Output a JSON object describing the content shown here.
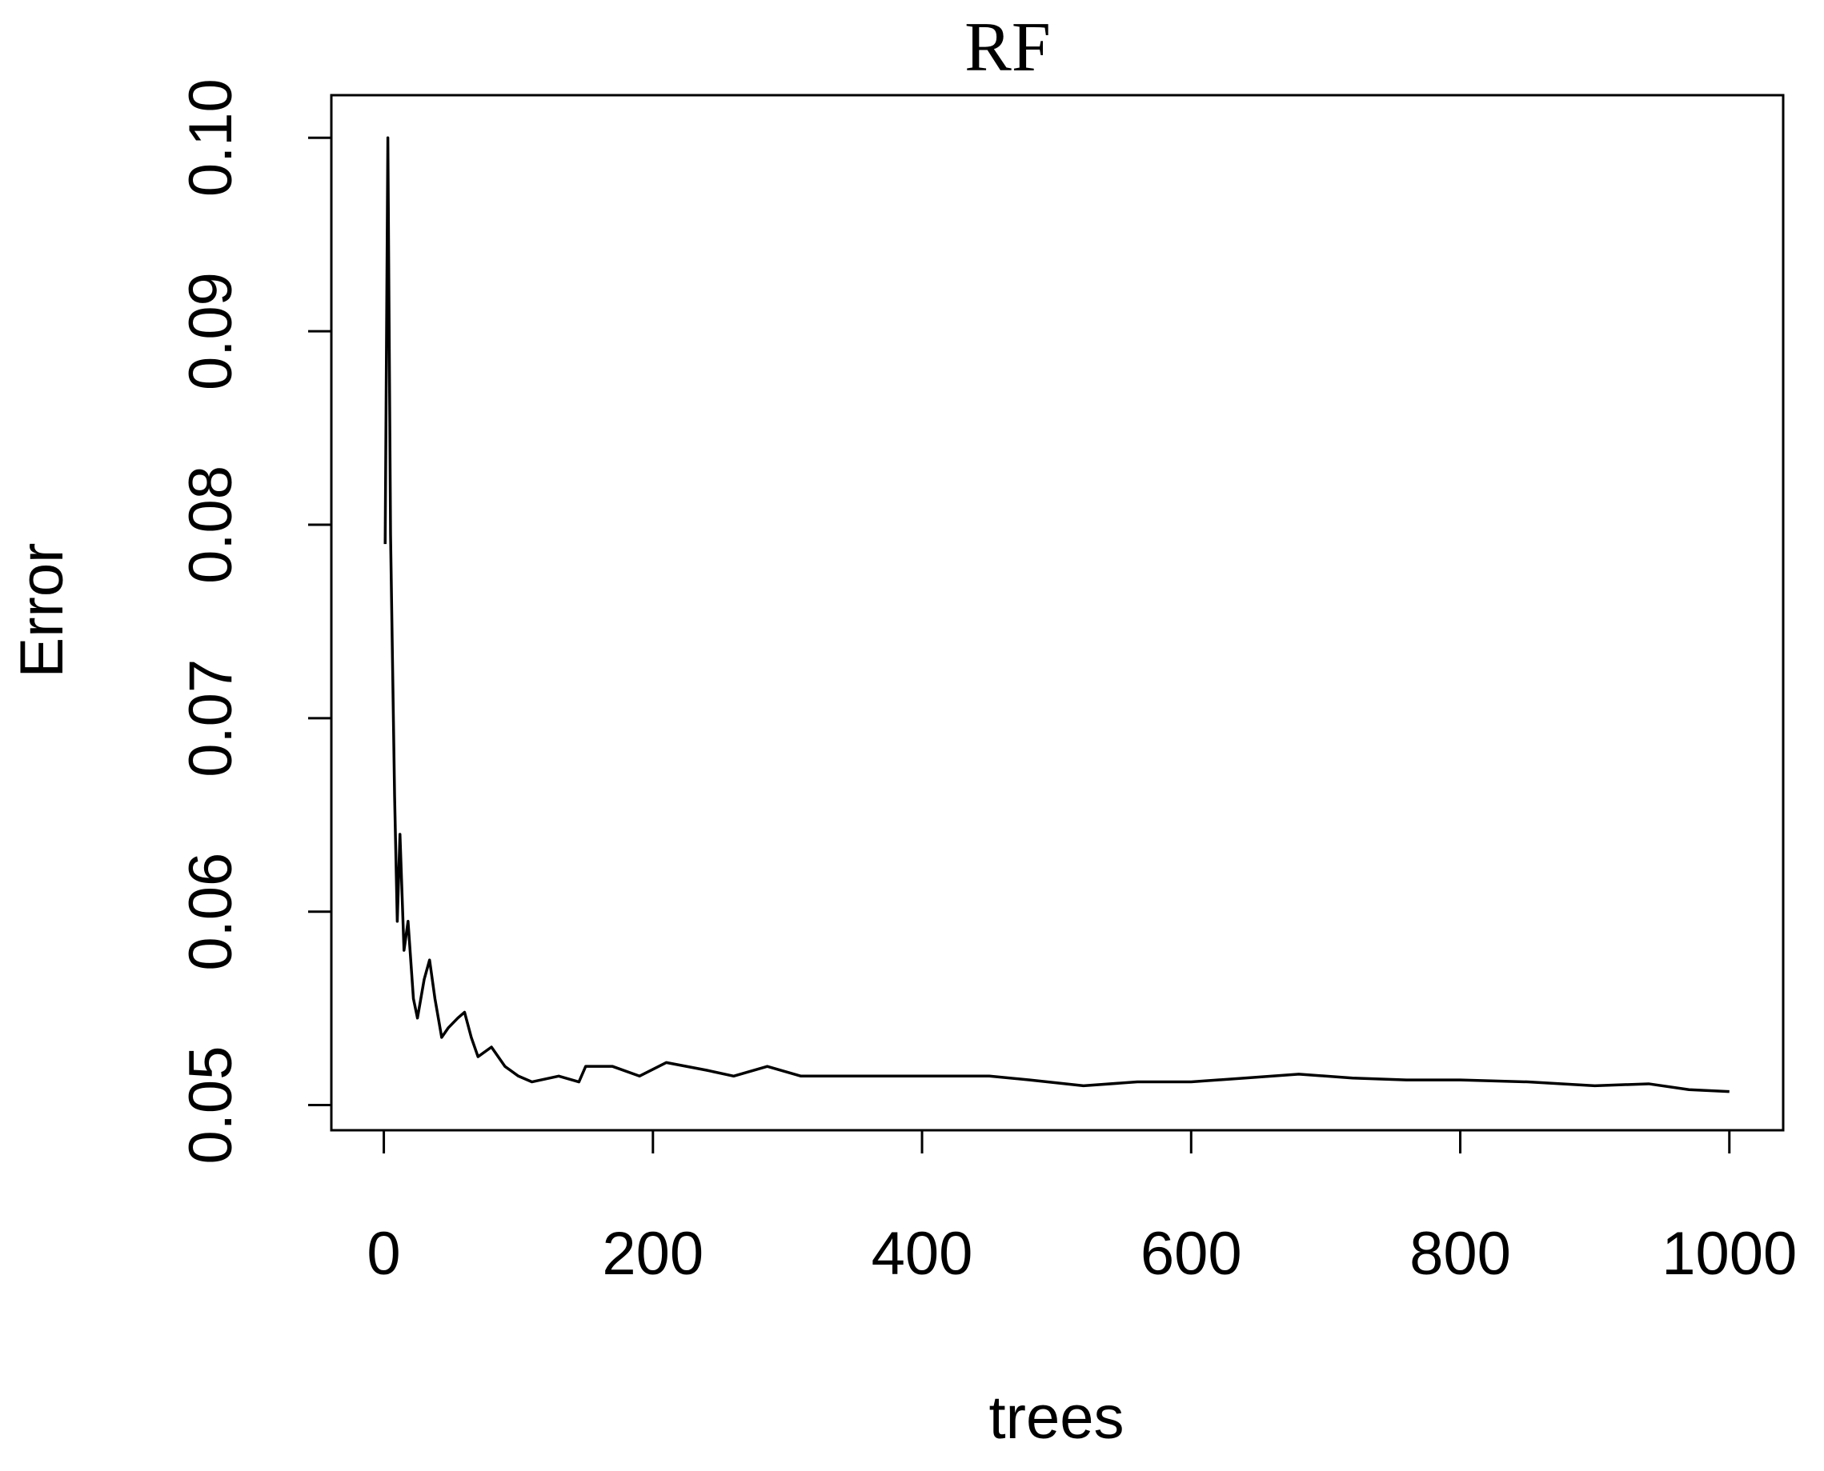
{
  "chart_data": {
    "type": "line",
    "title": "RF",
    "x_label": "trees",
    "y_label": "Error",
    "x": [
      1,
      3,
      5,
      8,
      10,
      12,
      15,
      18,
      22,
      25,
      30,
      34,
      38,
      43,
      48,
      55,
      60,
      65,
      70,
      80,
      90,
      100,
      110,
      130,
      145,
      150,
      170,
      190,
      210,
      240,
      260,
      285,
      310,
      350,
      400,
      450,
      480,
      520,
      560,
      600,
      640,
      680,
      720,
      760,
      800,
      850,
      900,
      940,
      970,
      1000
    ],
    "series": [
      {
        "name": "Error",
        "color": "#000000",
        "values": [
          0.079,
          0.1,
          0.0795,
          0.066,
          0.0595,
          0.064,
          0.058,
          0.0595,
          0.0555,
          0.0545,
          0.0565,
          0.0575,
          0.0555,
          0.0535,
          0.054,
          0.0545,
          0.0548,
          0.0535,
          0.0525,
          0.053,
          0.052,
          0.0515,
          0.0512,
          0.0515,
          0.0512,
          0.052,
          0.052,
          0.0515,
          0.0522,
          0.0518,
          0.0515,
          0.052,
          0.0515,
          0.0515,
          0.0515,
          0.0515,
          0.0513,
          0.051,
          0.0512,
          0.0512,
          0.0514,
          0.0516,
          0.0514,
          0.0513,
          0.0513,
          0.0512,
          0.051,
          0.0511,
          0.0508,
          0.0507
        ]
      }
    ],
    "xlim": [
      -39,
      1040
    ],
    "ylim": [
      0.0487,
      0.1022
    ],
    "xticks": [
      0,
      200,
      400,
      600,
      800,
      1000
    ],
    "yticks": [
      0.05,
      0.06,
      0.07,
      0.08,
      0.09,
      {
        "value": 0.1,
        "label": "0.10"
      }
    ]
  }
}
